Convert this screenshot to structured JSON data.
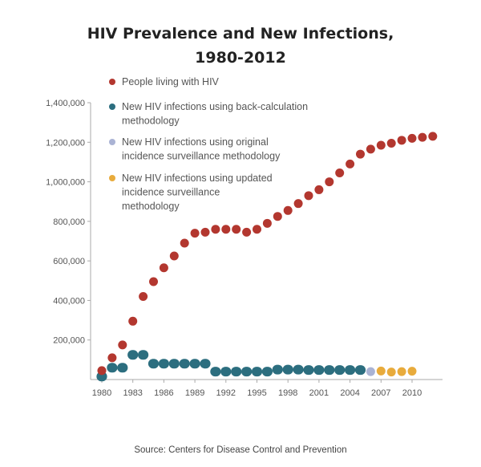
{
  "chart_data": {
    "type": "scatter",
    "title": [
      "HIV Prevalence and New Infections,",
      "1980-2012"
    ],
    "source": "Source: Centers for Disease Control and Prevention",
    "xlim": [
      1980,
      2012
    ],
    "ylim": [
      0,
      1400000
    ],
    "x_ticks": [
      "1980",
      "1983",
      "1986",
      "1989",
      "1992",
      "1995",
      "1998",
      "2001",
      "2004",
      "2007",
      "2010"
    ],
    "y_ticks": [
      "200,000",
      "400,000",
      "600,000",
      "800,000",
      "1,000,000",
      "1,200,000",
      "1,400,000"
    ],
    "grid": false,
    "legend_placement": "top-left",
    "series": [
      {
        "name": "People living with HIV",
        "color": "#b3372f",
        "x": [
          1980,
          1981,
          1982,
          1983,
          1984,
          1985,
          1986,
          1987,
          1988,
          1989,
          1990,
          1991,
          1992,
          1993,
          1994,
          1995,
          1996,
          1997,
          1998,
          1999,
          2000,
          2001,
          2002,
          2003,
          2004,
          2005,
          2006,
          2007,
          2008,
          2009,
          2010,
          2011,
          2012
        ],
        "y": [
          45000,
          110000,
          175000,
          295000,
          420000,
          495000,
          565000,
          625000,
          690000,
          740000,
          745000,
          760000,
          760000,
          760000,
          745000,
          760000,
          790000,
          825000,
          855000,
          890000,
          930000,
          960000,
          1000000,
          1045000,
          1090000,
          1140000,
          1165000,
          1185000,
          1195000,
          1210000,
          1220000,
          1225000,
          1230000
        ]
      },
      {
        "name": "New HIV infections using back-calculation methodology",
        "legend_lines": [
          "New HIV infections using back-calculation",
          "methodology"
        ],
        "color": "#2c6e7f",
        "x": [
          1980,
          1981,
          1982,
          1983,
          1984,
          1985,
          1986,
          1987,
          1988,
          1989,
          1990,
          1991,
          1992,
          1993,
          1994,
          1995,
          1996,
          1997,
          1998,
          1999,
          2000,
          2001,
          2002,
          2003,
          2004,
          2005
        ],
        "y": [
          15000,
          60000,
          60000,
          125000,
          125000,
          80000,
          80000,
          80000,
          80000,
          80000,
          80000,
          40000,
          40000,
          40000,
          40000,
          40000,
          40000,
          50000,
          50000,
          50000,
          48000,
          48000,
          48000,
          48000,
          48000,
          48000
        ]
      },
      {
        "name": "New HIV infections using original incidence surveillance methodology",
        "legend_lines": [
          "New HIV infections using original",
          "incidence surveillance methodology"
        ],
        "color": "#aab3d4",
        "x": [
          2006
        ],
        "y": [
          40000
        ]
      },
      {
        "name": "New HIV infections using updated incidence surveillance methodology",
        "legend_lines": [
          "New HIV infections using updated",
          "incidence surveillance",
          "methodology"
        ],
        "color": "#e8ab3c",
        "x": [
          2007,
          2008,
          2009,
          2010
        ],
        "y": [
          43000,
          38000,
          40000,
          42000
        ]
      }
    ]
  }
}
